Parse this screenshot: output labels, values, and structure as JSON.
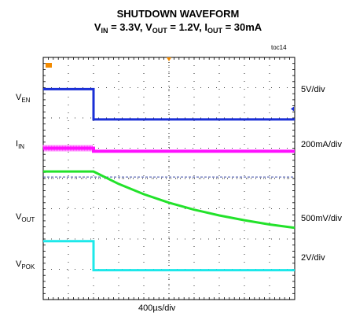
{
  "title": {
    "line1": "SHUTDOWN WAVEFORM",
    "line2": [
      {
        "t": "V"
      },
      {
        "t": "IN",
        "sub": true
      },
      {
        "t": " = 3.3V, V"
      },
      {
        "t": "OUT",
        "sub": true
      },
      {
        "t": " = 1.2V, I"
      },
      {
        "t": "OUT",
        "sub": true
      },
      {
        "t": " = 30mA"
      }
    ]
  },
  "tag": "toc14",
  "time_scale": "400µs/div",
  "channels": [
    {
      "name": "V",
      "sub": "EN",
      "scale": "5V/div",
      "color": "#1a2fd6"
    },
    {
      "name": "I",
      "sub": "IN",
      "scale": "200mA/div",
      "color": "#ff10ff"
    },
    {
      "name": "V",
      "sub": "OUT",
      "scale": "500mV/div",
      "color": "#22e22a"
    },
    {
      "name": "V",
      "sub": "POK",
      "scale": "2V/div",
      "color": "#1de8ea"
    }
  ],
  "chart_data": {
    "type": "line",
    "title": "SHUTDOWN WAVEFORM",
    "x_unit": "div",
    "xlim": [
      0,
      10
    ],
    "ylim_div": [
      0,
      8
    ],
    "grid": true,
    "series": [
      {
        "name": "VEN",
        "x": [
          0,
          2.0,
          2.0,
          10
        ],
        "y": [
          6.95,
          6.95,
          5.95,
          5.95
        ]
      },
      {
        "name": "IIN",
        "x": [
          0,
          2.0,
          2.0,
          10
        ],
        "y": [
          5.0,
          5.0,
          4.9,
          4.9
        ]
      },
      {
        "name": "VOUT",
        "x": [
          0,
          2.0,
          3.0,
          4.0,
          5.0,
          6.0,
          7.0,
          8.0,
          9.0,
          10
        ],
        "y": [
          4.23,
          4.23,
          3.82,
          3.48,
          3.2,
          2.97,
          2.78,
          2.62,
          2.48,
          2.37
        ]
      },
      {
        "name": "VPOK",
        "x": [
          0,
          2.0,
          2.0,
          10
        ],
        "y": [
          1.93,
          1.93,
          0.97,
          0.97
        ]
      }
    ]
  }
}
